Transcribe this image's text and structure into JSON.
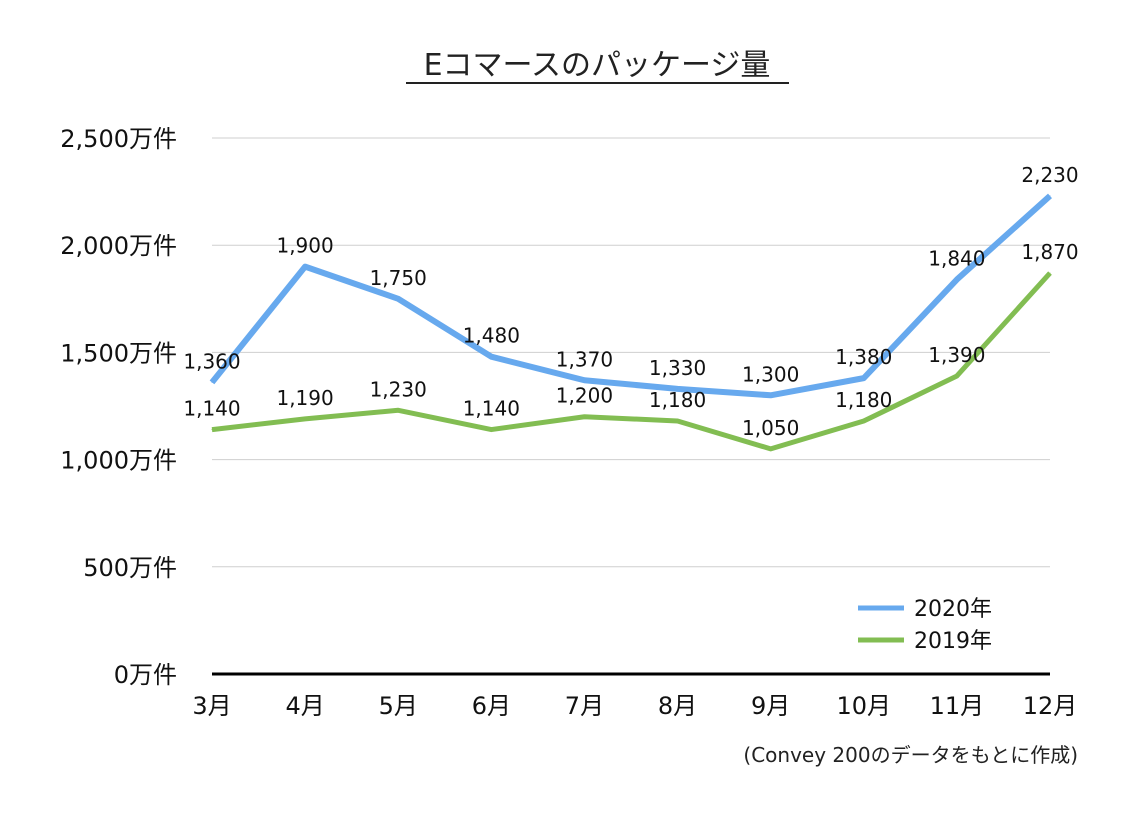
{
  "chart_data": {
    "type": "line",
    "title": "Eコマースのパッケージ量",
    "categories": [
      "3月",
      "4月",
      "5月",
      "6月",
      "7月",
      "8月",
      "9月",
      "10月",
      "11月",
      "12月"
    ],
    "y_tick_values": [
      0,
      500,
      1000,
      1500,
      2000,
      2500
    ],
    "y_tick_labels": [
      "0万件",
      "500万件",
      "1,000万件",
      "1,500万件",
      "2,000万件",
      "2,500万件"
    ],
    "ylim": [
      0,
      2500
    ],
    "grid": true,
    "legend_position": "bottom-right",
    "series": [
      {
        "name": "2020年",
        "color": "#67a9ee",
        "values": [
          1360,
          1900,
          1750,
          1480,
          1370,
          1330,
          1300,
          1380,
          1840,
          2230
        ],
        "labels": [
          "1,360",
          "1,900",
          "1,750",
          "1,480",
          "1,370",
          "1,330",
          "1,300",
          "1,380",
          "1,840",
          "2,230"
        ]
      },
      {
        "name": "2019年",
        "color": "#82bd52",
        "values": [
          1140,
          1190,
          1230,
          1140,
          1200,
          1180,
          1050,
          1180,
          1390,
          1870
        ],
        "labels": [
          "1,140",
          "1,190",
          "1,230",
          "1,140",
          "1,200",
          "1,180",
          "1,050",
          "1,180",
          "1,390",
          "1,870"
        ]
      }
    ],
    "source": "(Convey 200のデータをもとに作成)"
  }
}
